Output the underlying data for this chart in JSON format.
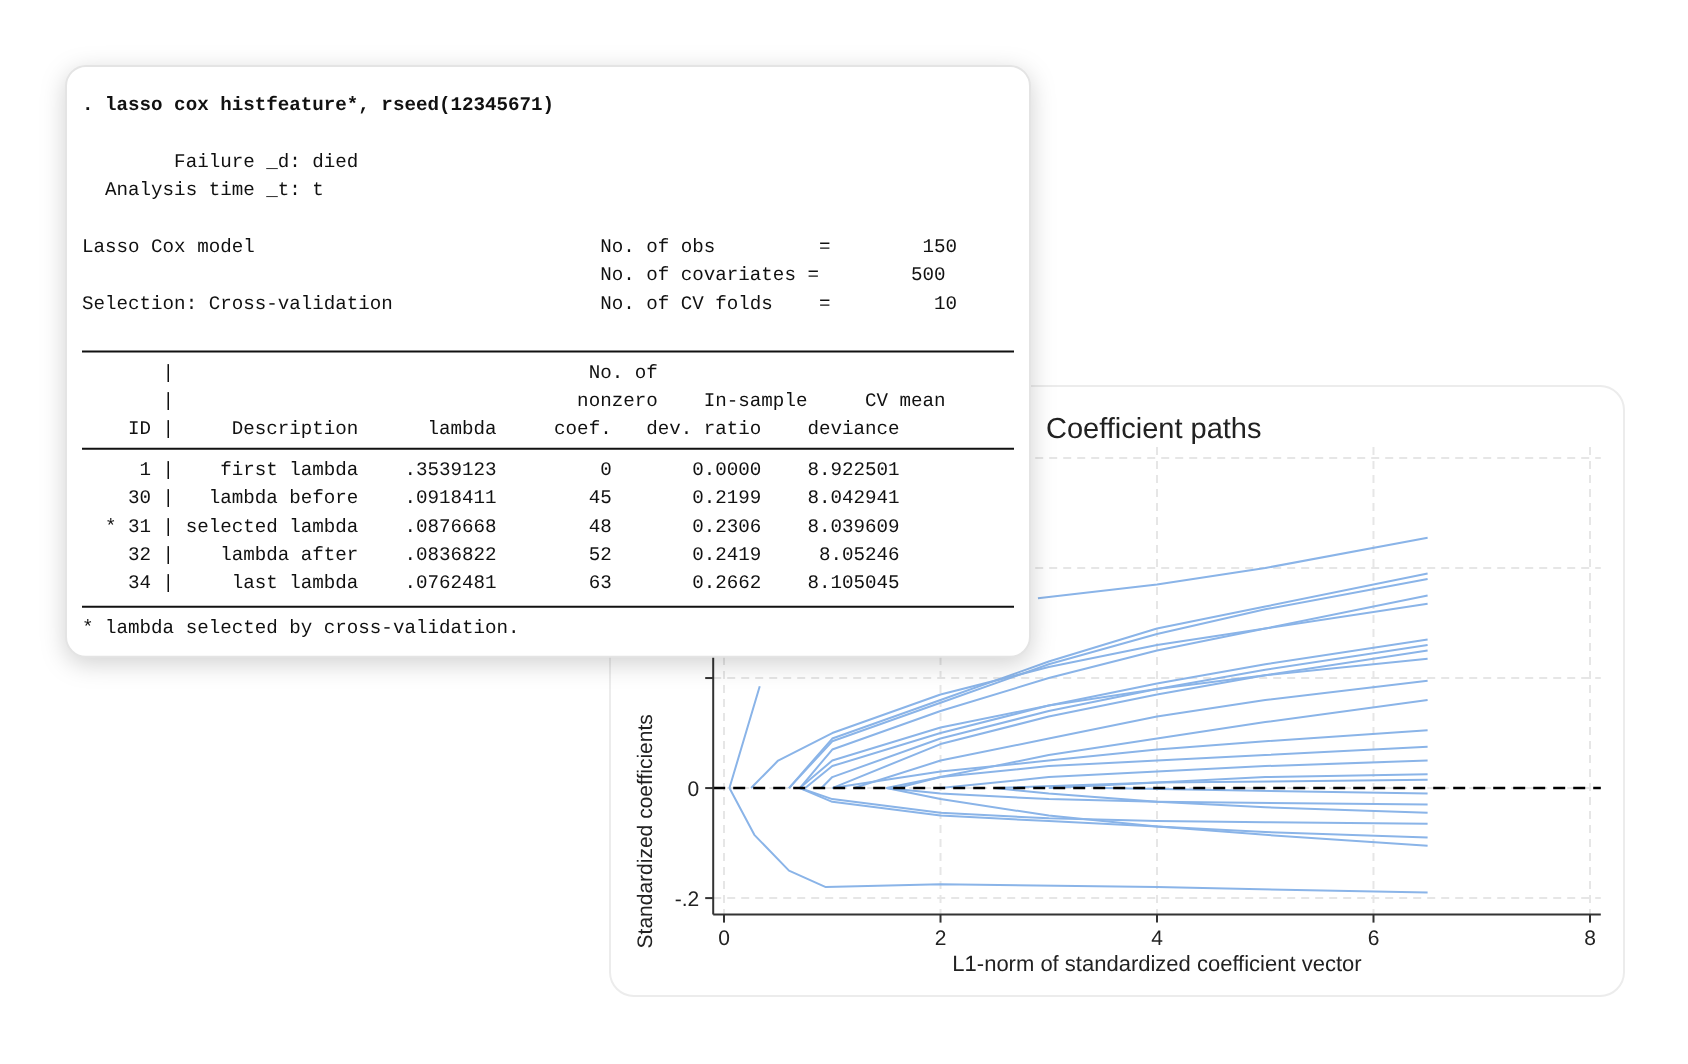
{
  "chart_data": [
    {
      "type": "other",
      "annotations": [
        ". lasso cox histfeature*, rseed(12345671)",
        "        Failure _d: died",
        "  Analysis time _t: t",
        "Lasso Cox model                              No. of obs         =        150",
        "                                             No. of covariates =        500",
        "Selection: Cross-validation                  No. of CV folds    =         10",
        "       |                                    No. of",
        "       |                                   nonzero    In-sample     CV mean",
        "    ID |     Description      lambda     coef.   dev. ratio    deviance",
        "     1 |    first lambda    .3539123         0       0.0000    8.922501",
        "    30 |   lambda before    .0918411        45       0.2199    8.042941",
        "  * 31 | selected lambda    .0876668        48       0.2306    8.039609",
        "    32 |    lambda after    .0836822        52       0.2419     8.05246",
        "    34 |     last lambda    .0762481        63       0.2662    8.105045",
        "* lambda selected by cross-validation."
      ]
    },
    {
      "type": "line",
      "title": "Coefficient paths",
      "xlabel": "L1-norm of standardized coefficient vector",
      "ylabel": "Standardized coefficients",
      "xlim": [
        -0.1,
        8.1
      ],
      "ylim": [
        -0.23,
        0.62
      ],
      "xticks": [
        0,
        2,
        4,
        6,
        8
      ],
      "yticks": [
        {
          "value": -0.2,
          "label": "-.2"
        },
        0,
        {
          "value": 0.2,
          "label": null
        },
        {
          "value": 0.4,
          "label": null
        },
        {
          "value": 0.6,
          "label": null
        }
      ],
      "grid": true,
      "ref_lines": [
        {
          "axis": "y",
          "value": 0,
          "label": null,
          "color": "#000000",
          "line_style": "dashed"
        }
      ],
      "series": [
        {
          "color": "#8ab4e8",
          "x": [
            0.05,
            0.33,
            1.5,
            2.9,
            4,
            5,
            6.5
          ],
          "values": [
            0,
            0.185,
            null,
            0.345,
            0.37,
            0.4,
            0.455
          ]
        },
        {
          "color": "#8ab4e8",
          "x": [
            0.6,
            1,
            2,
            3,
            4,
            5,
            6.5
          ],
          "values": [
            0,
            0.09,
            0.16,
            0.23,
            0.29,
            0.33,
            0.39
          ]
        },
        {
          "color": "#8ab4e8",
          "x": [
            0.6,
            1,
            2,
            3,
            4,
            5,
            6.5
          ],
          "values": [
            0,
            0.085,
            0.155,
            0.225,
            0.28,
            0.325,
            0.38
          ]
        },
        {
          "color": "#8ab4e8",
          "x": [
            0.7,
            1,
            2,
            3,
            4,
            5,
            6.5
          ],
          "values": [
            0,
            0.07,
            0.14,
            0.2,
            0.25,
            0.29,
            0.35
          ]
        },
        {
          "color": "#8ab4e8",
          "x": [
            0.25,
            0.5,
            1,
            2,
            3,
            4,
            5,
            6.5
          ],
          "values": [
            0,
            0.05,
            0.1,
            0.17,
            0.22,
            0.26,
            0.29,
            0.335
          ]
        },
        {
          "color": "#8ab4e8",
          "x": [
            0.75,
            1,
            2,
            3,
            4,
            5,
            6.5
          ],
          "values": [
            0,
            0.04,
            0.1,
            0.15,
            0.19,
            0.225,
            0.27
          ]
        },
        {
          "color": "#8ab4e8",
          "x": [
            0.9,
            1,
            2,
            3,
            4,
            5,
            6.5
          ],
          "values": [
            0,
            0.02,
            0.09,
            0.14,
            0.18,
            0.215,
            0.26
          ]
        },
        {
          "color": "#8ab4e8",
          "x": [
            1,
            2,
            3,
            4,
            5,
            6.5
          ],
          "values": [
            0,
            0.08,
            0.13,
            0.17,
            0.205,
            0.25
          ]
        },
        {
          "color": "#8ab4e8",
          "x": [
            0.7,
            1,
            2,
            3,
            4,
            5,
            6.5
          ],
          "values": [
            0,
            0.05,
            0.11,
            0.15,
            0.18,
            0.205,
            0.235
          ]
        },
        {
          "color": "#8ab4e8",
          "x": [
            1.2,
            2,
            3,
            4,
            5,
            6.5
          ],
          "values": [
            0,
            0.05,
            0.09,
            0.13,
            0.16,
            0.195
          ]
        },
        {
          "color": "#8ab4e8",
          "x": [
            1.6,
            2,
            3,
            4,
            5,
            6.5
          ],
          "values": [
            0,
            0.02,
            0.06,
            0.09,
            0.12,
            0.16
          ]
        },
        {
          "color": "#8ab4e8",
          "x": [
            1,
            2,
            3,
            4,
            5,
            6.5
          ],
          "values": [
            0,
            0.03,
            0.05,
            0.07,
            0.085,
            0.105
          ]
        },
        {
          "color": "#8ab4e8",
          "x": [
            1.5,
            2,
            3,
            4,
            5,
            6.5
          ],
          "values": [
            0,
            0.02,
            0.04,
            0.05,
            0.06,
            0.075
          ]
        },
        {
          "color": "#8ab4e8",
          "x": [
            2,
            3,
            4,
            5,
            6.5
          ],
          "values": [
            0,
            0.02,
            0.03,
            0.04,
            0.05
          ]
        },
        {
          "color": "#8ab4e8",
          "x": [
            2.5,
            4,
            5,
            6.5
          ],
          "values": [
            0,
            0.01,
            0.02,
            0.025
          ]
        },
        {
          "color": "#8ab4e8",
          "x": [
            3,
            4,
            6.5
          ],
          "values": [
            0,
            0.01,
            0.015
          ]
        },
        {
          "color": "#8ab4e8",
          "x": [
            3.5,
            6.5
          ],
          "values": [
            0,
            -0.01
          ]
        },
        {
          "color": "#8ab4e8",
          "x": [
            1.5,
            2,
            3,
            4,
            6.5
          ],
          "values": [
            0,
            -0.01,
            -0.02,
            -0.025,
            -0.03
          ]
        },
        {
          "color": "#8ab4e8",
          "x": [
            2.5,
            3,
            4,
            5,
            6.5
          ],
          "values": [
            0,
            -0.01,
            -0.025,
            -0.035,
            -0.045
          ]
        },
        {
          "color": "#8ab4e8",
          "x": [
            0.7,
            1,
            2,
            3,
            4,
            5,
            6.5
          ],
          "values": [
            0,
            -0.02,
            -0.045,
            -0.055,
            -0.06,
            -0.062,
            -0.065
          ]
        },
        {
          "color": "#8ab4e8",
          "x": [
            0.7,
            1,
            2,
            3,
            4,
            5,
            6.5
          ],
          "values": [
            0,
            -0.025,
            -0.05,
            -0.06,
            -0.07,
            -0.08,
            -0.09
          ]
        },
        {
          "color": "#8ab4e8",
          "x": [
            1.5,
            2,
            3,
            4,
            5,
            6.5
          ],
          "values": [
            0,
            -0.02,
            -0.05,
            -0.07,
            -0.085,
            -0.105
          ]
        },
        {
          "color": "#8ab4e8",
          "x": [
            0.05,
            0.28,
            0.6,
            0.94,
            2,
            4,
            6.5
          ],
          "values": [
            0,
            -0.085,
            -0.15,
            -0.18,
            -0.175,
            -0.18,
            -0.19
          ]
        }
      ]
    }
  ]
}
